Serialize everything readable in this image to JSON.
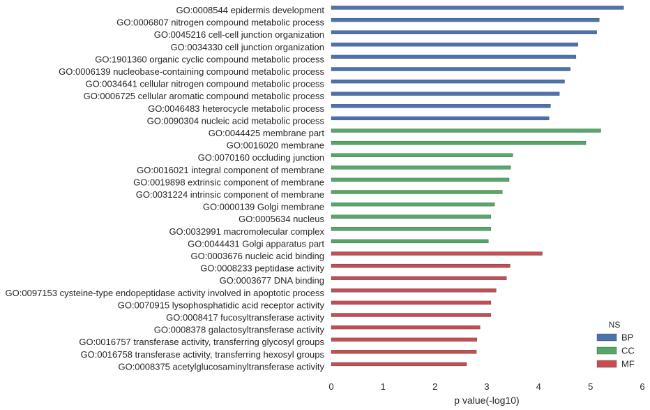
{
  "chart_data": {
    "type": "bar",
    "orientation": "horizontal",
    "xlabel": "p value(-log10)",
    "ylabel": "",
    "xlim": [
      0,
      6
    ],
    "xticks": [
      "0",
      "1",
      "2",
      "3",
      "4",
      "5",
      "6"
    ],
    "grid": false,
    "legend": {
      "title": "NS",
      "position": "bottom-right",
      "entries": [
        {
          "name": "BP",
          "color": "#4c72b0"
        },
        {
          "name": "CC",
          "color": "#55a868"
        },
        {
          "name": "MF",
          "color": "#c44e52"
        }
      ]
    },
    "categories": [
      {
        "label": "GO:0008544 epidermis development",
        "value": 5.64,
        "ns": "BP"
      },
      {
        "label": "GO:0006807 nitrogen compound metabolic process",
        "value": 5.17,
        "ns": "BP"
      },
      {
        "label": "GO:0045216 cell-cell junction organization",
        "value": 5.12,
        "ns": "BP"
      },
      {
        "label": "GO:0034330 cell junction organization",
        "value": 4.76,
        "ns": "BP"
      },
      {
        "label": "GO:1901360 organic cyclic compound metabolic process",
        "value": 4.72,
        "ns": "BP"
      },
      {
        "label": "GO:0006139 nucleobase-containing compound metabolic process",
        "value": 4.61,
        "ns": "BP"
      },
      {
        "label": "GO:0034641 cellular nitrogen compound metabolic process",
        "value": 4.5,
        "ns": "BP"
      },
      {
        "label": "GO:0006725 cellular aromatic compound metabolic process",
        "value": 4.4,
        "ns": "BP"
      },
      {
        "label": "GO:0046483 heterocycle metabolic process",
        "value": 4.23,
        "ns": "BP"
      },
      {
        "label": "GO:0090304 nucleic acid metabolic process",
        "value": 4.2,
        "ns": "BP"
      },
      {
        "label": "GO:0044425 membrane part",
        "value": 5.2,
        "ns": "CC"
      },
      {
        "label": "GO:0016020 membrane",
        "value": 4.91,
        "ns": "CC"
      },
      {
        "label": "GO:0070160 occluding junction",
        "value": 3.5,
        "ns": "CC"
      },
      {
        "label": "GO:0016021 integral component of membrane",
        "value": 3.46,
        "ns": "CC"
      },
      {
        "label": "GO:0019898 extrinsic component of membrane",
        "value": 3.43,
        "ns": "CC"
      },
      {
        "label": "GO:0031224 intrinsic component of membrane",
        "value": 3.3,
        "ns": "CC"
      },
      {
        "label": "GO:0000139 Golgi membrane",
        "value": 3.15,
        "ns": "CC"
      },
      {
        "label": "GO:0005634 nucleus",
        "value": 3.08,
        "ns": "CC"
      },
      {
        "label": "GO:0032991 macromolecular complex",
        "value": 3.08,
        "ns": "CC"
      },
      {
        "label": "GO:0044431 Golgi apparatus part",
        "value": 3.03,
        "ns": "CC"
      },
      {
        "label": "GO:0003676 nucleic acid binding",
        "value": 4.07,
        "ns": "MF"
      },
      {
        "label": "GO:0008233 peptidase activity",
        "value": 3.45,
        "ns": "MF"
      },
      {
        "label": "GO:0003677 DNA binding",
        "value": 3.38,
        "ns": "MF"
      },
      {
        "label": "GO:0097153 cysteine-type endopeptidase activity involved in apoptotic process",
        "value": 3.18,
        "ns": "MF"
      },
      {
        "label": "GO:0070915 lysophosphatidic acid receptor activity",
        "value": 3.08,
        "ns": "MF"
      },
      {
        "label": "GO:0008417 fucosyltransferase activity",
        "value": 3.08,
        "ns": "MF"
      },
      {
        "label": "GO:0008378 galactosyltransferase activity",
        "value": 2.87,
        "ns": "MF"
      },
      {
        "label": "GO:0016757 transferase activity, transferring glycosyl groups",
        "value": 2.81,
        "ns": "MF"
      },
      {
        "label": "GO:0016758 transferase activity, transferring hexosyl groups",
        "value": 2.8,
        "ns": "MF"
      },
      {
        "label": "GO:0008375 acetylglucosaminyltransferase activity",
        "value": 2.61,
        "ns": "MF"
      }
    ]
  }
}
